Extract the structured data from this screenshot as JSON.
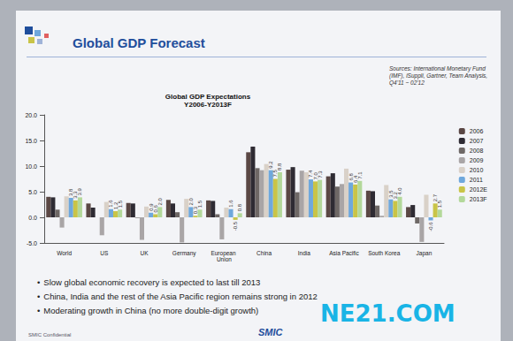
{
  "slide": {
    "heading": "Global GDP Forecast",
    "source": "Sources: International Monetary Fund (IMF), iSuppli, Gartner, Team Analysis, Q4'11 ~ 02'12",
    "bullets": [
      "Slow global economic recovery is expected to last till 2013",
      "China, India and the rest of the Asia Pacific region remains strong in 2012",
      "Moderating growth in China (no more double-digit growth)"
    ],
    "footer": "SMIC Confidential",
    "logo": "SMIC",
    "watermark": "NE21.COM"
  },
  "chart_data": {
    "type": "bar",
    "title": "Global GDP Expectations",
    "subtitle": "Y2006-Y2013F",
    "categories": [
      "World",
      "US",
      "UK",
      "Germany",
      "European Union",
      "China",
      "India",
      "Asia Pacific",
      "South Korea",
      "Japan"
    ],
    "series": [
      {
        "name": "2006",
        "color": "#5a4744",
        "values": [
          4.0,
          2.7,
          2.8,
          3.4,
          3.3,
          12.7,
          9.3,
          8.0,
          5.2,
          2.0
        ]
      },
      {
        "name": "2007",
        "color": "#2e2b33",
        "values": [
          3.9,
          1.9,
          2.7,
          2.7,
          3.2,
          13.8,
          9.8,
          8.6,
          5.1,
          2.4
        ]
      },
      {
        "name": "2008",
        "color": "#6e6866",
        "values": [
          1.5,
          0.0,
          -0.1,
          1.0,
          0.6,
          9.6,
          4.9,
          6.0,
          2.3,
          -1.2
        ]
      },
      {
        "name": "2009",
        "color": "#a9a5a6",
        "values": [
          -2.0,
          -3.5,
          -4.4,
          -4.9,
          -4.3,
          9.2,
          9.1,
          6.5,
          0.3,
          -4.8
        ]
      },
      {
        "name": "2010",
        "color": "#d9d1c8",
        "values": [
          4.1,
          3.0,
          2.1,
          3.6,
          1.9,
          10.4,
          8.8,
          9.5,
          6.3,
          4.4
        ]
      },
      {
        "name": "2011",
        "color": "#6fa8dc",
        "data_labels": true,
        "values": [
          3.8,
          1.6,
          0.9,
          2.0,
          1.6,
          9.2,
          7.4,
          6.8,
          3.5,
          -0.6
        ],
        "value_labels": [
          "3.8",
          "1.6",
          "0.9",
          "2.0",
          "1.6",
          "9.2",
          "7.4",
          "6.8",
          "3.5",
          "-0.6"
        ]
      },
      {
        "name": "2012E",
        "color": "#c9c447",
        "data_labels": true,
        "values": [
          3.3,
          1.2,
          0.6,
          0.3,
          -0.5,
          7.5,
          7.0,
          6.4,
          3.2,
          2.7
        ],
        "value_labels": [
          "3.3",
          "1.2",
          "0.6",
          "0.3",
          "-0.5",
          "7.5",
          "7.0",
          "6.4",
          "3.2",
          "2.7"
        ]
      },
      {
        "name": "2013F",
        "color": "#b3d89a",
        "data_labels": true,
        "values": [
          3.9,
          1.5,
          2.0,
          1.5,
          0.8,
          8.8,
          7.3,
          7.1,
          4.0,
          1.5
        ],
        "value_labels": [
          "3.9",
          "1.5",
          "2.0",
          "1.5",
          "0.8",
          "8.8",
          "7.3",
          "7.1",
          "4.0",
          "1.5"
        ]
      }
    ],
    "ylim": [
      -5,
      20
    ],
    "yticks": [
      {
        "value": -5,
        "label": "-5.0"
      },
      {
        "value": 0,
        "label": "0.0"
      },
      {
        "value": 5,
        "label": "5.0"
      },
      {
        "value": 10,
        "label": "10.0"
      },
      {
        "value": 15,
        "label": "15.0"
      },
      {
        "value": 20,
        "label": "20.0"
      }
    ],
    "grid": false,
    "legend": "right"
  }
}
